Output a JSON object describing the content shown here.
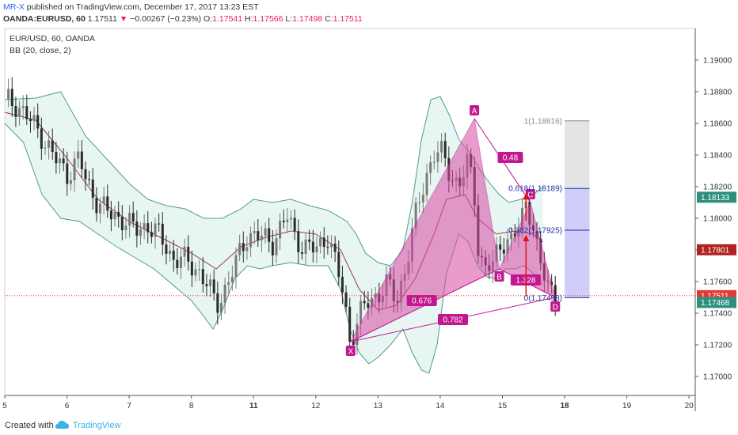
{
  "header": {
    "author": "MR-X",
    "published_text": "published on TradingView.com, December 17, 2017 13:23 EST",
    "symbol": "OANDA:EURUSD, 60",
    "last": "1.17511",
    "change_arrow": "▼",
    "change": "−0.00267 (−0.23%)",
    "o_label": "O:",
    "o_val": "1.17541",
    "h_label": "H:",
    "h_val": "1.17566",
    "l_label": "L:",
    "l_val": "1.17498",
    "c_label": "C:",
    "c_val": "1.17511"
  },
  "legend": {
    "title": "EUR/USD, 60, OANDA",
    "indicator": "BB (20, close, 2)"
  },
  "footer": {
    "created_with": "Created with",
    "brand": "TradingView"
  },
  "colors": {
    "up_candle": "#7a7a7a",
    "down_candle": "#2b2b2b",
    "bb_band": "#4e9c8c",
    "bb_fill": "#e3f4f0",
    "bb_basis": "#9c3a3a",
    "pattern_fill": "#d94aa6",
    "pattern_line": "#c2188f",
    "fib_blue": "#2530a8",
    "fib_grey": "#888888",
    "arrow_red": "#e01010"
  },
  "chart_data": {
    "type": "candlestick",
    "title": "EUR/USD, 60, OANDA",
    "ylim": [
      1.1688,
      1.192
    ],
    "y_ticks": [
      "1.17000",
      "1.17200",
      "1.17400",
      "1.17600",
      "1.17800",
      "1.18000",
      "1.18200",
      "1.18400",
      "1.18600",
      "1.18800",
      "1.19000"
    ],
    "x_ticks": [
      {
        "label": "5",
        "x": 5.0
      },
      {
        "label": "6",
        "x": 6.0
      },
      {
        "label": "7",
        "x": 7.0
      },
      {
        "label": "8",
        "x": 8.0
      },
      {
        "label": "11",
        "x": 9.0
      },
      {
        "label": "12",
        "x": 10.0
      },
      {
        "label": "13",
        "x": 11.0
      },
      {
        "label": "14",
        "x": 12.0
      },
      {
        "label": "15",
        "x": 13.0
      },
      {
        "label": "18",
        "x": 14.0
      },
      {
        "label": "19",
        "x": 15.0
      },
      {
        "label": "20",
        "x": 16.0
      }
    ],
    "xlim": [
      5.0,
      16.1
    ],
    "price_path": [
      [
        5.0,
        1.1875
      ],
      [
        5.2,
        1.1872
      ],
      [
        5.4,
        1.1862
      ],
      [
        5.6,
        1.1852
      ],
      [
        5.8,
        1.1838
      ],
      [
        6.0,
        1.1828
      ],
      [
        6.2,
        1.1838
      ],
      [
        6.3,
        1.1824
      ],
      [
        6.5,
        1.181
      ],
      [
        6.7,
        1.1802
      ],
      [
        6.9,
        1.18
      ],
      [
        7.1,
        1.1792
      ],
      [
        7.3,
        1.1796
      ],
      [
        7.5,
        1.1788
      ],
      [
        7.7,
        1.1775
      ],
      [
        7.9,
        1.1773
      ],
      [
        8.1,
        1.1768
      ],
      [
        8.25,
        1.1758
      ],
      [
        8.4,
        1.1745
      ],
      [
        8.6,
        1.176
      ],
      [
        8.8,
        1.178
      ],
      [
        8.9,
        1.179
      ],
      [
        9.1,
        1.1788
      ],
      [
        9.3,
        1.1785
      ],
      [
        9.45,
        1.1795
      ],
      [
        9.55,
        1.1801
      ],
      [
        9.65,
        1.179
      ],
      [
        9.8,
        1.1782
      ],
      [
        10.0,
        1.178
      ],
      [
        10.2,
        1.179
      ],
      [
        10.3,
        1.1773
      ],
      [
        10.45,
        1.1752
      ],
      [
        10.55,
        1.1722
      ],
      [
        10.7,
        1.1738
      ],
      [
        10.85,
        1.1748
      ],
      [
        11.0,
        1.1752
      ],
      [
        11.15,
        1.1758
      ],
      [
        11.3,
        1.1748
      ],
      [
        11.45,
        1.177
      ],
      [
        11.6,
        1.18
      ],
      [
        11.75,
        1.1825
      ],
      [
        11.9,
        1.184
      ],
      [
        12.0,
        1.1842
      ],
      [
        12.15,
        1.183
      ],
      [
        12.3,
        1.182
      ],
      [
        12.45,
        1.1836
      ],
      [
        12.55,
        1.1815
      ],
      [
        12.62,
        1.1778
      ],
      [
        12.72,
        1.1768
      ],
      [
        12.85,
        1.177
      ],
      [
        12.95,
        1.1782
      ],
      [
        13.05,
        1.1788
      ],
      [
        13.15,
        1.1785
      ],
      [
        13.28,
        1.1795
      ],
      [
        13.38,
        1.181
      ],
      [
        13.48,
        1.18
      ],
      [
        13.6,
        1.177
      ],
      [
        13.72,
        1.1758
      ],
      [
        13.85,
        1.1752
      ]
    ],
    "bb_upper": [
      [
        5.0,
        1.1875
      ],
      [
        5.5,
        1.1876
      ],
      [
        5.9,
        1.188
      ],
      [
        6.3,
        1.1852
      ],
      [
        6.7,
        1.1835
      ],
      [
        7.0,
        1.1822
      ],
      [
        7.3,
        1.1812
      ],
      [
        7.6,
        1.1808
      ],
      [
        7.9,
        1.1806
      ],
      [
        8.2,
        1.18
      ],
      [
        8.5,
        1.18
      ],
      [
        8.8,
        1.1806
      ],
      [
        9.0,
        1.1812
      ],
      [
        9.3,
        1.181
      ],
      [
        9.6,
        1.1812
      ],
      [
        9.9,
        1.1808
      ],
      [
        10.2,
        1.1805
      ],
      [
        10.5,
        1.1798
      ],
      [
        10.65,
        1.179
      ],
      [
        10.8,
        1.1778
      ],
      [
        11.0,
        1.1772
      ],
      [
        11.2,
        1.177
      ],
      [
        11.4,
        1.178
      ],
      [
        11.55,
        1.181
      ],
      [
        11.7,
        1.185
      ],
      [
        11.85,
        1.1875
      ],
      [
        12.0,
        1.1877
      ],
      [
        12.15,
        1.1865
      ],
      [
        12.3,
        1.185
      ],
      [
        12.5,
        1.184
      ],
      [
        12.65,
        1.183
      ],
      [
        12.8,
        1.1822
      ],
      [
        12.95,
        1.1815
      ],
      [
        13.1,
        1.181
      ],
      [
        13.3,
        1.1812
      ],
      [
        13.5,
        1.1815
      ],
      [
        13.65,
        1.182
      ]
    ],
    "bb_lower": [
      [
        5.0,
        1.186
      ],
      [
        5.3,
        1.1848
      ],
      [
        5.6,
        1.1815
      ],
      [
        5.9,
        1.18
      ],
      [
        6.2,
        1.1798
      ],
      [
        6.5,
        1.179
      ],
      [
        6.8,
        1.1782
      ],
      [
        7.1,
        1.1775
      ],
      [
        7.4,
        1.1768
      ],
      [
        7.7,
        1.1758
      ],
      [
        8.0,
        1.1748
      ],
      [
        8.2,
        1.1738
      ],
      [
        8.35,
        1.173
      ],
      [
        8.5,
        1.1742
      ],
      [
        8.7,
        1.1762
      ],
      [
        8.9,
        1.177
      ],
      [
        9.1,
        1.1768
      ],
      [
        9.3,
        1.177
      ],
      [
        9.6,
        1.1772
      ],
      [
        9.9,
        1.177
      ],
      [
        10.2,
        1.177
      ],
      [
        10.4,
        1.1755
      ],
      [
        10.55,
        1.173
      ],
      [
        10.7,
        1.1715
      ],
      [
        10.85,
        1.1708
      ],
      [
        11.0,
        1.1712
      ],
      [
        11.2,
        1.172
      ],
      [
        11.4,
        1.173
      ],
      [
        11.55,
        1.1715
      ],
      [
        11.7,
        1.1704
      ],
      [
        11.82,
        1.1702
      ],
      [
        11.95,
        1.172
      ],
      [
        12.1,
        1.1765
      ],
      [
        12.3,
        1.179
      ],
      [
        12.45,
        1.1785
      ],
      [
        12.6,
        1.177
      ],
      [
        12.75,
        1.1763
      ],
      [
        12.9,
        1.1762
      ],
      [
        13.05,
        1.1768
      ],
      [
        13.2,
        1.1768
      ],
      [
        13.35,
        1.177
      ],
      [
        13.5,
        1.1765
      ],
      [
        13.65,
        1.1758
      ]
    ],
    "bb_basis": [
      [
        5.0,
        1.1867
      ],
      [
        5.5,
        1.1862
      ],
      [
        6.0,
        1.1838
      ],
      [
        6.5,
        1.1812
      ],
      [
        7.0,
        1.1798
      ],
      [
        7.5,
        1.1788
      ],
      [
        8.0,
        1.1778
      ],
      [
        8.4,
        1.1768
      ],
      [
        8.8,
        1.1782
      ],
      [
        9.2,
        1.1788
      ],
      [
        9.6,
        1.1792
      ],
      [
        10.0,
        1.179
      ],
      [
        10.4,
        1.178
      ],
      [
        10.7,
        1.1755
      ],
      [
        11.0,
        1.1742
      ],
      [
        11.3,
        1.1745
      ],
      [
        11.6,
        1.1762
      ],
      [
        11.9,
        1.179
      ],
      [
        12.1,
        1.1812
      ],
      [
        12.4,
        1.1815
      ],
      [
        12.6,
        1.18
      ],
      [
        12.9,
        1.179
      ],
      [
        13.2,
        1.1792
      ],
      [
        13.5,
        1.179
      ],
      [
        13.65,
        1.1785
      ]
    ],
    "pattern": {
      "points": [
        {
          "label": "X",
          "x": 10.56,
          "y": 1.1722
        },
        {
          "label": "A",
          "x": 12.55,
          "y": 1.1863
        },
        {
          "label": "B",
          "x": 12.95,
          "y": 1.1768
        },
        {
          "label": "C",
          "x": 13.45,
          "y": 1.181
        },
        {
          "label": "D",
          "x": 13.85,
          "y": 1.175
        }
      ],
      "ratios": [
        {
          "label": "0.48"
        },
        {
          "label": "1.328"
        },
        {
          "label": "0.676"
        },
        {
          "label": "0.782"
        }
      ]
    },
    "fib": {
      "levels": [
        {
          "label": "1(1.18616)",
          "value": 1.18616,
          "color": "grey"
        },
        {
          "label": "0.618(1.18189)",
          "value": 1.18189,
          "color": "blue"
        },
        {
          "label": "0.382(1.17925)",
          "value": 1.17925,
          "color": "blue"
        },
        {
          "label": "0(1.17498)",
          "value": 1.17498,
          "color": "blue"
        }
      ]
    },
    "price_tags": [
      {
        "label": "1.18133",
        "value": 1.18133,
        "color": "#2f8f7e"
      },
      {
        "label": "1.17801",
        "value": 1.17801,
        "color": "#b22222"
      },
      {
        "label": "1.17511",
        "value": 1.17511,
        "color": "#e53935"
      },
      {
        "label": "1.17468",
        "value": 1.17468,
        "color": "#2f8f7e"
      }
    ],
    "current_price": 1.17511
  }
}
